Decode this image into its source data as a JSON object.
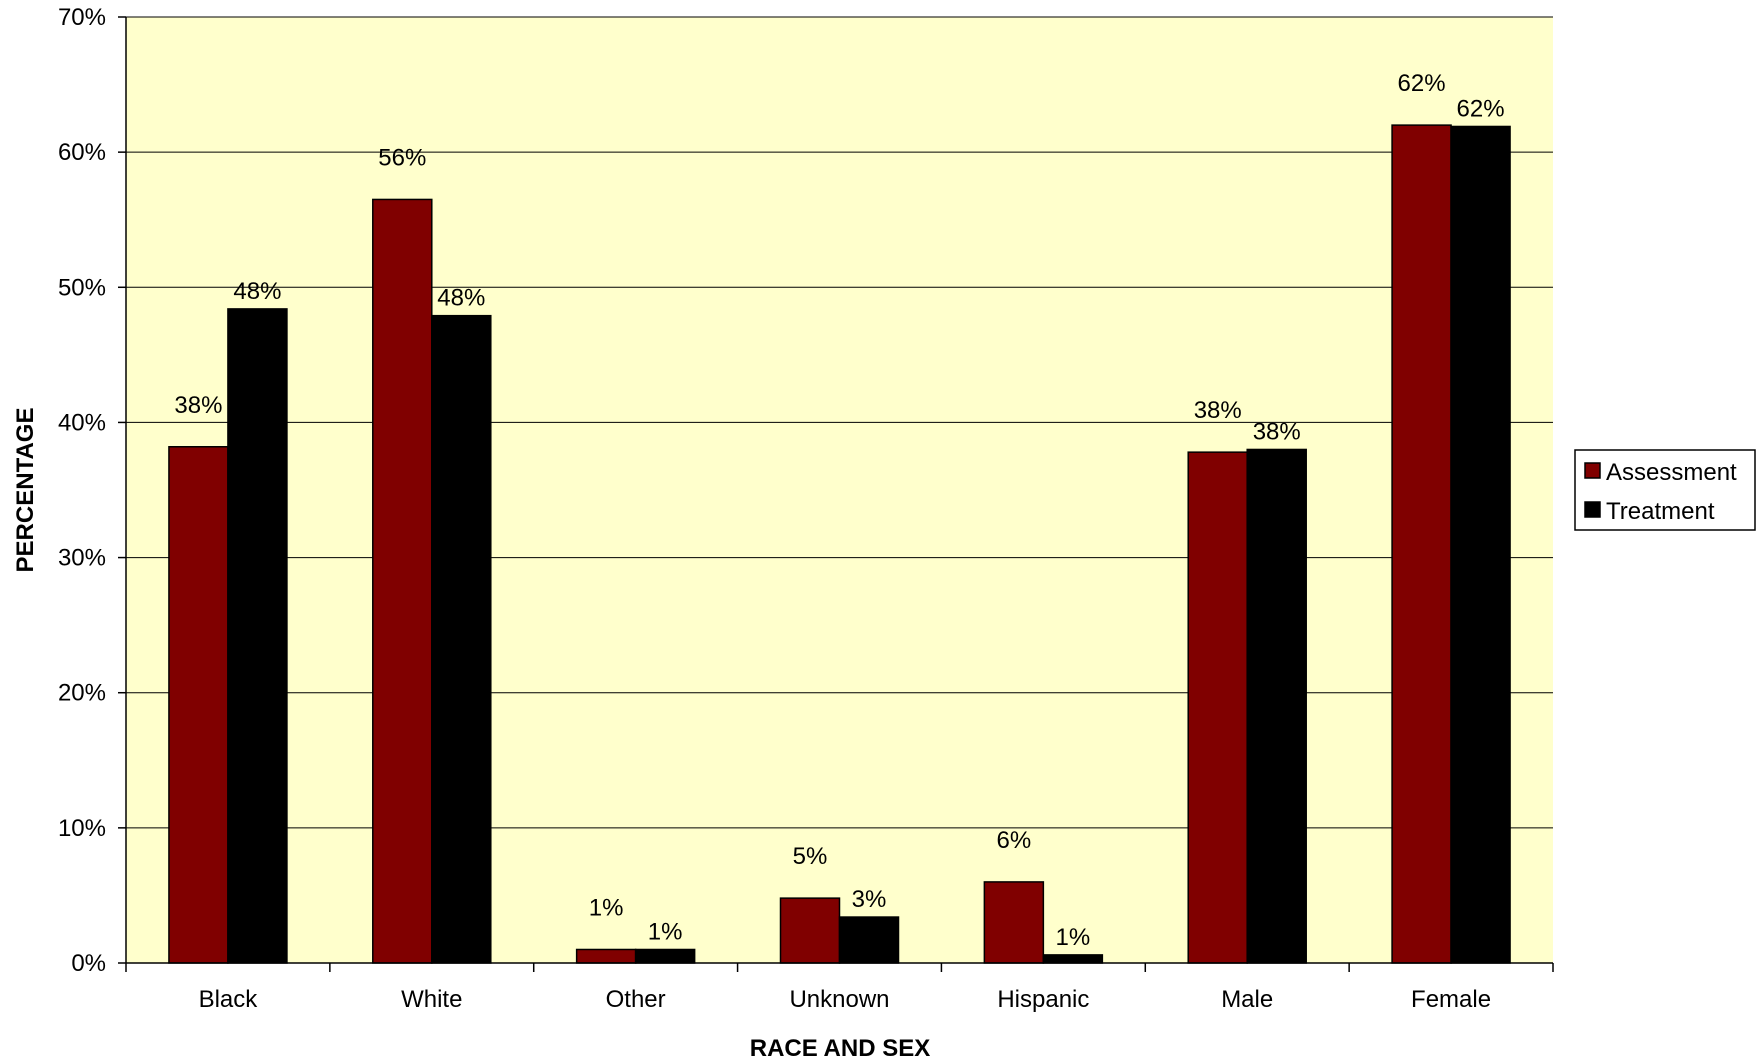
{
  "chart_data": {
    "type": "bar",
    "title": "",
    "xlabel": "RACE  AND SEX",
    "ylabel": "PERCENTAGE",
    "categories": [
      "Black",
      "White",
      "Other",
      "Unknown",
      "Hispanic",
      "Male",
      "Female"
    ],
    "series": [
      {
        "name": "Assessment",
        "color": "#800000",
        "values": [
          38.2,
          56.5,
          1.0,
          4.8,
          6.0,
          37.8,
          62.0
        ],
        "labels": [
          "38%",
          "56%",
          "1%",
          "5%",
          "6%",
          "38%",
          "62%"
        ]
      },
      {
        "name": "Treatment",
        "color": "#000000",
        "values": [
          48.4,
          47.9,
          1.0,
          3.4,
          0.6,
          38.0,
          61.9
        ],
        "labels": [
          "48%",
          "48%",
          "1%",
          "3%",
          "1%",
          "38%",
          "62%"
        ]
      }
    ],
    "ylim": [
      0,
      70
    ],
    "yticks": [
      "0%",
      "10%",
      "20%",
      "30%",
      "40%",
      "50%",
      "60%",
      "70%"
    ],
    "grid": true,
    "plot_background": "#FFFFCC",
    "legend_position": "right"
  }
}
